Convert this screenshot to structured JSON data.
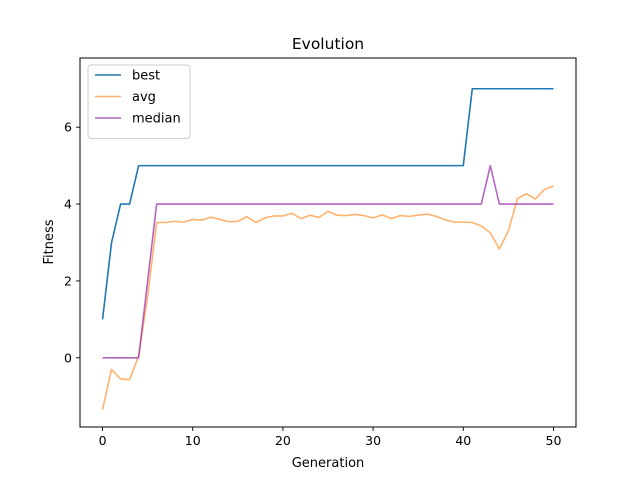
{
  "chart_data": {
    "type": "line",
    "title": "Evolution",
    "xlabel": "Generation",
    "ylabel": "Fitness",
    "xlim": [
      -2.5,
      52.5
    ],
    "ylim": [
      -1.8,
      7.8
    ],
    "xticks": [
      0,
      10,
      20,
      30,
      40,
      50
    ],
    "yticks": [
      0,
      2,
      4,
      6
    ],
    "grid": false,
    "legend_position": "upper left",
    "x": [
      0,
      1,
      2,
      3,
      4,
      5,
      6,
      7,
      8,
      9,
      10,
      11,
      12,
      13,
      14,
      15,
      16,
      17,
      18,
      19,
      20,
      21,
      22,
      23,
      24,
      25,
      26,
      27,
      28,
      29,
      30,
      31,
      32,
      33,
      34,
      35,
      36,
      37,
      38,
      39,
      40,
      41,
      42,
      43,
      44,
      45,
      46,
      47,
      48,
      49,
      50
    ],
    "series": [
      {
        "name": "best",
        "color": "#1f77b4",
        "opacity": 1.0,
        "values": [
          1,
          3,
          4,
          4,
          5,
          5,
          5,
          5,
          5,
          5,
          5,
          5,
          5,
          5,
          5,
          5,
          5,
          5,
          5,
          5,
          5,
          5,
          5,
          5,
          5,
          5,
          5,
          5,
          5,
          5,
          5,
          5,
          5,
          5,
          5,
          5,
          5,
          5,
          5,
          5,
          5,
          7,
          7,
          7,
          7,
          7,
          7,
          7,
          7,
          7,
          7
        ]
      },
      {
        "name": "avg",
        "color": "#ff7f0e",
        "opacity": 0.6,
        "values": [
          -1.35,
          -0.3,
          -0.55,
          -0.57,
          0.05,
          1.6,
          3.52,
          3.52,
          3.55,
          3.53,
          3.6,
          3.58,
          3.66,
          3.6,
          3.54,
          3.55,
          3.67,
          3.52,
          3.64,
          3.69,
          3.69,
          3.76,
          3.62,
          3.71,
          3.65,
          3.81,
          3.71,
          3.7,
          3.73,
          3.7,
          3.64,
          3.72,
          3.62,
          3.7,
          3.68,
          3.71,
          3.74,
          3.68,
          3.59,
          3.53,
          3.53,
          3.52,
          3.43,
          3.25,
          2.83,
          3.3,
          4.14,
          4.27,
          4.13,
          4.38,
          4.47
        ]
      },
      {
        "name": "median",
        "color": "#9b30ae",
        "opacity": 0.75,
        "values": [
          0,
          0,
          0,
          0,
          0,
          2,
          4,
          4,
          4,
          4,
          4,
          4,
          4,
          4,
          4,
          4,
          4,
          4,
          4,
          4,
          4,
          4,
          4,
          4,
          4,
          4,
          4,
          4,
          4,
          4,
          4,
          4,
          4,
          4,
          4,
          4,
          4,
          4,
          4,
          4,
          4,
          4,
          4,
          5,
          4,
          4,
          4,
          4,
          4,
          4,
          4
        ]
      }
    ]
  }
}
